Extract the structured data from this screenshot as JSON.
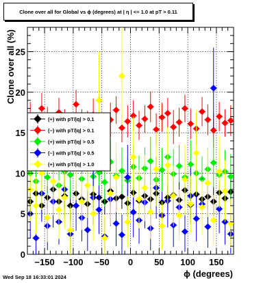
{
  "title": "Clone  over all for Global vs ϕ (degrees) at |  η | <= 1.0 at pT > 0.11",
  "date": "Wed Sep 18 16:33:01 2024",
  "chart_data": {
    "type": "scatter",
    "xlabel": "ϕ (degrees)",
    "ylabel": "Clone  over all (%)",
    "xlim": [
      -180,
      180
    ],
    "ylim": [
      0,
      28
    ],
    "xticks": [
      "−150",
      "−100",
      "−50",
      "0",
      "50",
      "100",
      "150"
    ],
    "xtick_values": [
      -150,
      -100,
      -50,
      0,
      50,
      100,
      150
    ],
    "yticks": [
      "0",
      "5",
      "10",
      "15",
      "20",
      "25"
    ],
    "ytick_values": [
      0,
      5,
      10,
      15,
      20,
      25
    ],
    "grid": true,
    "legend_position": "left-middle",
    "series": [
      {
        "name": "(+) with pT/|q| > 0.1",
        "color": "#000000",
        "marker": "diamond",
        "x": [
          -175,
          -165,
          -155,
          -145,
          -135,
          -125,
          -115,
          -105,
          -95,
          -85,
          -75,
          -65,
          -55,
          -45,
          -35,
          -25,
          -15,
          -5,
          5,
          15,
          25,
          35,
          45,
          55,
          65,
          75,
          85,
          95,
          105,
          115,
          125,
          135,
          145,
          155,
          165,
          175
        ],
        "y": [
          6.5,
          7.5,
          6.0,
          7.0,
          8.0,
          6.5,
          7.2,
          6.0,
          7.5,
          6.8,
          6.2,
          7.4,
          7.0,
          6.5,
          7.8,
          6.9,
          7.1,
          6.3,
          7.6,
          6.6,
          7.2,
          6.8,
          7.5,
          6.4,
          7.0,
          7.3,
          6.7,
          7.9,
          6.1,
          7.4,
          6.8,
          7.1,
          6.5,
          7.6,
          6.9,
          7.7
        ],
        "err": [
          1.5,
          1.8,
          1.6,
          1.4,
          1.7,
          1.5,
          1.6,
          1.8,
          1.5,
          1.4,
          1.6,
          1.7,
          1.5,
          1.6,
          1.8,
          1.4,
          1.5,
          1.7,
          1.6,
          1.5,
          1.4,
          1.6,
          1.7,
          1.5,
          1.6,
          1.8,
          1.5,
          1.4,
          1.6,
          1.7,
          1.5,
          1.6,
          1.8,
          1.5,
          1.4,
          1.6
        ]
      },
      {
        "name": "(−) with pT/|q| > 0.1",
        "color": "#ff0000",
        "marker": "diamond",
        "x": [
          -175,
          -165,
          -155,
          -145,
          -135,
          -125,
          -115,
          -105,
          -95,
          -85,
          -75,
          -65,
          -55,
          -45,
          -35,
          -25,
          -15,
          -5,
          5,
          15,
          25,
          35,
          45,
          55,
          65,
          75,
          85,
          95,
          105,
          115,
          125,
          135,
          145,
          155,
          165,
          175
        ],
        "y": [
          17.0,
          15.0,
          18.0,
          16.5,
          14.5,
          17.5,
          16.0,
          15.5,
          18.5,
          16.2,
          15.8,
          17.2,
          16.8,
          15.2,
          16.6,
          17.8,
          15.6,
          16.4,
          17.1,
          15.9,
          16.7,
          18.2,
          15.4,
          16.9,
          17.4,
          15.7,
          16.3,
          18.0,
          16.1,
          15.5,
          17.6,
          16.6,
          15.3,
          17.0,
          16.2,
          16.5
        ],
        "err": [
          1.8,
          2.0,
          1.9,
          1.7,
          2.1,
          1.8,
          1.9,
          2.0,
          1.8,
          1.7,
          1.9,
          2.0,
          1.8,
          1.9,
          2.1,
          1.7,
          1.8,
          2.0,
          1.9,
          1.8,
          1.7,
          1.9,
          2.0,
          1.8,
          1.9,
          2.1,
          1.8,
          1.7,
          1.9,
          2.0,
          1.8,
          1.9,
          2.1,
          1.8,
          1.7,
          1.9
        ]
      },
      {
        "name": "(+) with pT/|q| > 0.5",
        "color": "#00ee00",
        "marker": "diamond",
        "x": [
          -175,
          -165,
          -155,
          -145,
          -135,
          -125,
          -115,
          -105,
          -95,
          -85,
          -75,
          -65,
          -55,
          -45,
          -35,
          -25,
          -15,
          -5,
          5,
          15,
          25,
          35,
          45,
          55,
          65,
          75,
          85,
          95,
          105,
          115,
          125,
          135,
          145,
          155,
          165,
          175
        ],
        "y": [
          10.0,
          9.0,
          11.0,
          9.5,
          10.5,
          8.5,
          10.2,
          9.8,
          11.2,
          9.3,
          10.7,
          9.6,
          10.1,
          8.9,
          11.4,
          9.7,
          10.3,
          9.1,
          10.8,
          9.4,
          10.6,
          11.5,
          9.2,
          10.4,
          12.0,
          9.9,
          10.9,
          9.5,
          11.1,
          10.0,
          9.3,
          10.5,
          11.3,
          9.8,
          10.2,
          9.6
        ],
        "err": [
          2.5,
          3.0,
          2.8,
          2.6,
          3.1,
          2.7,
          2.9,
          3.0,
          2.6,
          2.8,
          3.1,
          2.7,
          2.5,
          3.0,
          2.8,
          2.6,
          2.9,
          3.1,
          2.7,
          2.8,
          2.6,
          3.0,
          2.9,
          2.7,
          2.8,
          3.1,
          2.6,
          2.9,
          3.0,
          2.7,
          2.8,
          2.6,
          3.1,
          2.9,
          2.7,
          2.8
        ]
      },
      {
        "name": "(−) with pT/|q| > 0.5",
        "color": "#0000ff",
        "marker": "diamond",
        "x": [
          -175,
          -165,
          -155,
          -145,
          -135,
          -125,
          -115,
          -105,
          -95,
          -85,
          -75,
          -65,
          -55,
          -45,
          -35,
          -25,
          -15,
          -5,
          5,
          15,
          25,
          35,
          45,
          55,
          65,
          75,
          85,
          95,
          105,
          115,
          125,
          135,
          145,
          155,
          165,
          175
        ],
        "y": [
          5.0,
          2.0,
          7.5,
          3.5,
          6.5,
          4.0,
          8.0,
          2.5,
          6.0,
          4.5,
          3.0,
          7.0,
          5.5,
          2.2,
          6.8,
          3.8,
          2.4,
          9.5,
          5.2,
          4.2,
          6.4,
          3.2,
          8.2,
          4.8,
          6.6,
          3.6,
          5.8,
          2.8,
          7.2,
          4.4,
          6.2,
          3.4,
          20.5,
          5.6,
          4.0,
          2.5
        ],
        "err": [
          3.0,
          2.5,
          3.5,
          3.0,
          3.2,
          2.8,
          3.6,
          2.4,
          3.1,
          2.9,
          2.6,
          3.4,
          3.0,
          2.3,
          3.3,
          2.8,
          2.5,
          4.0,
          3.1,
          2.9,
          3.2,
          2.7,
          3.8,
          2.9,
          3.3,
          2.7,
          3.1,
          2.5,
          3.5,
          2.8,
          3.2,
          2.6,
          5.0,
          3.0,
          2.8,
          2.4
        ]
      },
      {
        "name": "(+) with pT/|q| > 1.0",
        "color": "#ffff00",
        "marker": "diamond",
        "x": [
          -175,
          -165,
          -155,
          -145,
          -135,
          -125,
          -115,
          -105,
          -95,
          -85,
          -75,
          -65,
          -55,
          -45,
          -35,
          -25,
          -15,
          -5,
          5,
          15,
          25,
          35,
          45,
          55,
          65,
          75,
          85,
          95,
          105,
          115,
          125,
          135,
          145,
          155,
          165,
          175
        ],
        "y": [
          8.0,
          6.0,
          10.0,
          4.5,
          9.0,
          5.5,
          7.0,
          3.0,
          11.5,
          6.5,
          8.5,
          5.0,
          19.0,
          2.0,
          7.5,
          9.5,
          22.0,
          4.0,
          12.0,
          6.8,
          8.2,
          5.2,
          10.5,
          3.5,
          11.0,
          7.2,
          4.8,
          9.2,
          6.2,
          12.5,
          5.8,
          8.8,
          4.2,
          10.2,
          7.8,
          3.8
        ],
        "err": [
          4.0,
          3.5,
          4.5,
          3.0,
          4.2,
          3.6,
          3.8,
          3.0,
          4.8,
          3.5,
          4.0,
          3.4,
          6.0,
          2.8,
          3.9,
          4.3,
          6.0,
          3.2,
          5.0,
          3.6,
          4.1,
          3.3,
          4.6,
          3.0,
          4.7,
          3.7,
          3.2,
          4.4,
          3.5,
          5.2,
          3.4,
          4.2,
          3.1,
          4.5,
          3.8,
          3.0
        ]
      }
    ]
  }
}
